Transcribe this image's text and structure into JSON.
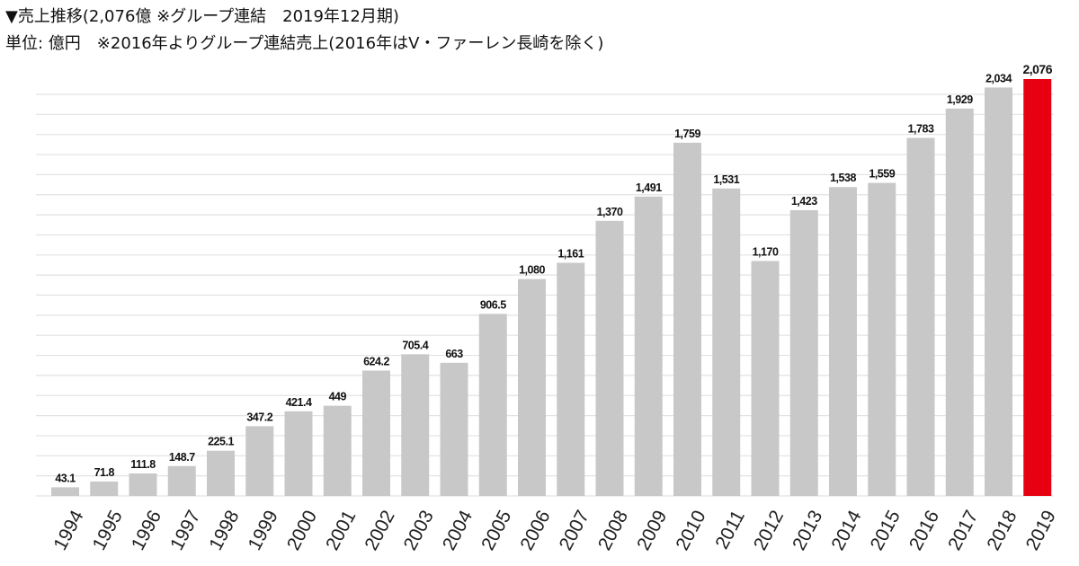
{
  "chart_data": {
    "type": "bar",
    "title": "▼売上推移(2,076億 ※グループ連結　2019年12月期)",
    "subtitle": "単位: 億円　※2016年よりグループ連結売上(2016年はV・ファーレン長崎を除く)",
    "xlabel": "",
    "ylabel": "億円",
    "ylim": [
      0,
      2100
    ],
    "grid": true,
    "categories": [
      "1994",
      "1995",
      "1996",
      "1997",
      "1998",
      "1999",
      "2000",
      "2001",
      "2002",
      "2003",
      "2004",
      "2005",
      "2006",
      "2007",
      "2008",
      "2009",
      "2010",
      "2011",
      "2012",
      "2013",
      "2014",
      "2015",
      "2016",
      "2017",
      "2018",
      "2019"
    ],
    "values": [
      43.1,
      71.8,
      111.8,
      148.7,
      225.1,
      347.2,
      421.4,
      449,
      624.2,
      705.4,
      663,
      906.5,
      1080,
      1161,
      1370,
      1491,
      1759,
      1531,
      1170,
      1423,
      1538,
      1559,
      1783,
      1929,
      2034,
      2076
    ],
    "labels": [
      "43.1",
      "71.8",
      "111.8",
      "148.7",
      "225.1",
      "347.2",
      "421.4",
      "449",
      "624.2",
      "705.4",
      "663",
      "906.5",
      "1,080",
      "1,161",
      "1,370",
      "1,491",
      "1,759",
      "1,531",
      "1,170",
      "1,423",
      "1,538",
      "1,559",
      "1,783",
      "1,929",
      "2,034",
      "2,076"
    ],
    "highlight_index": 25,
    "colors": {
      "bar": "#c8c8c8",
      "highlight": "#e60012",
      "grid": "#e2e2e2"
    }
  }
}
